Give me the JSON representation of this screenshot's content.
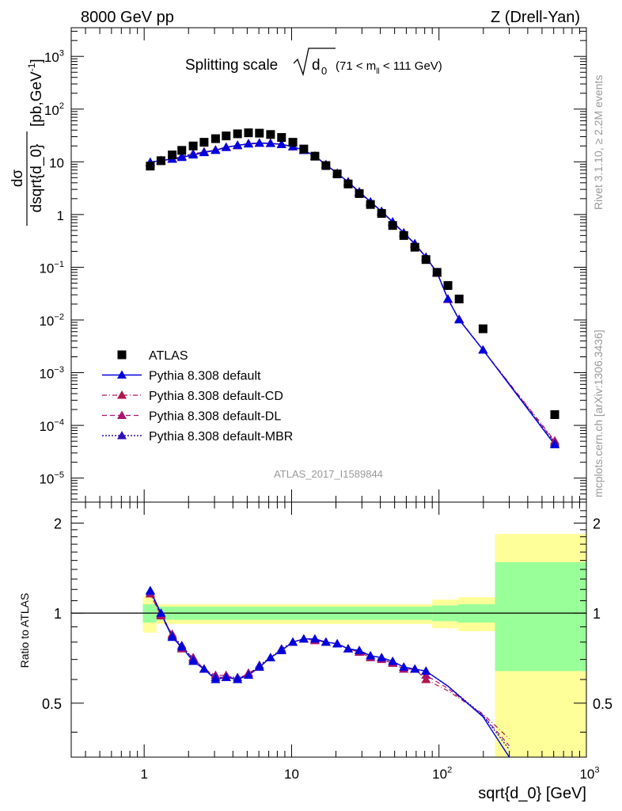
{
  "header": {
    "left": "8000 GeV pp",
    "right": "Z (Drell-Yan)"
  },
  "plot_title": {
    "main": "Splitting scale",
    "sqrt_symbol": "√",
    "d_symbol": "d",
    "d_subscript": "0",
    "cut_prefix": "(71 < m",
    "cut_subscript": "ll",
    "cut_suffix": " < 111 GeV)"
  },
  "side_labels": {
    "rivet": "Rivet 3.1.10, ≥ 2.2M events",
    "mcplots": "mcplots.cern.ch [arXiv:1306.3436]"
  },
  "analysis_id": "ATLAS_2017_I1589844",
  "ylabel_main": {
    "numerator": "dσ",
    "denominator": "dsqrt{d_0}",
    "units": "[pb,GeV",
    "units_exp": "-1",
    "units_close": "]"
  },
  "ylabel_ratio": "Ratio to ATLAS",
  "xlabel": "sqrt{d_0} [GeV]",
  "axis_ticks": {
    "x": [
      {
        "value": 1,
        "base": "1",
        "exp": ""
      },
      {
        "value": 10,
        "base": "10",
        "exp": ""
      },
      {
        "value": 100,
        "base": "10",
        "exp": "2"
      },
      {
        "value": 1000,
        "base": "10",
        "exp": "3"
      }
    ],
    "y_main": [
      {
        "value": 1e-05,
        "base": "10",
        "exp": "−5"
      },
      {
        "value": 0.0001,
        "base": "10",
        "exp": "−4"
      },
      {
        "value": 0.001,
        "base": "10",
        "exp": "−3"
      },
      {
        "value": 0.01,
        "base": "10",
        "exp": "−2"
      },
      {
        "value": 0.1,
        "base": "10",
        "exp": "−1"
      },
      {
        "value": 1,
        "base": "1",
        "exp": ""
      },
      {
        "value": 10,
        "base": "10",
        "exp": ""
      },
      {
        "value": 100,
        "base": "10",
        "exp": "2"
      },
      {
        "value": 1000,
        "base": "10",
        "exp": "3"
      }
    ],
    "y_ratio": [
      {
        "value": 0.5,
        "label": "0.5"
      },
      {
        "value": 1,
        "label": "1"
      },
      {
        "value": 2,
        "label": "2"
      }
    ]
  },
  "colors": {
    "data": "#000000",
    "default": "#0000dd",
    "cd": "#b0174a",
    "dl": "#a8146e",
    "mbr": "#2c12b8",
    "band_inner": "#99ff99",
    "band_outer": "#ffff99"
  },
  "legend": [
    {
      "label": "ATLAS",
      "series": "data"
    },
    {
      "label": "Pythia 8.308 default",
      "series": "default"
    },
    {
      "label": "Pythia 8.308 default-CD",
      "series": "cd"
    },
    {
      "label": "Pythia 8.308 default-DL",
      "series": "dl"
    },
    {
      "label": "Pythia 8.308 default-MBR",
      "series": "mbr"
    }
  ],
  "chart_data": {
    "type": "scatter",
    "x_scale": "log",
    "y_scale": "log",
    "xlim": [
      0.32,
      1000
    ],
    "ylim_main": [
      3.5e-06,
      3500
    ],
    "ylim_ratio": [
      0.33,
      2.35
    ],
    "x": [
      1.1,
      1.3,
      1.55,
      1.8,
      2.15,
      2.55,
      3.05,
      3.6,
      4.3,
      5.1,
      6.05,
      7.2,
      8.55,
      10.2,
      12.1,
      14.4,
      17.1,
      20.4,
      24.2,
      28.8,
      34.3,
      40.8,
      48.5,
      57.7,
      68.6,
      81.6,
      97,
      115,
      137,
      199,
      610
    ],
    "series": [
      {
        "name": "ATLAS",
        "key": "data",
        "values": [
          8.3,
          10.5,
          13.5,
          16.5,
          20,
          23.5,
          27.5,
          31,
          34,
          35.5,
          35,
          33,
          29,
          23.5,
          17.5,
          12.8,
          8.5,
          5.9,
          3.8,
          2.5,
          1.55,
          1.05,
          0.62,
          0.4,
          0.24,
          0.14,
          0.08,
          0.045,
          0.025,
          0.0068,
          0.00016
        ]
      },
      {
        "name": "Pythia 8.308 default",
        "key": "default",
        "values": [
          9.8,
          10.6,
          11.2,
          12.1,
          13.5,
          15,
          16.5,
          18.8,
          20.5,
          21.8,
          22.6,
          22.3,
          21.5,
          19.5,
          16.5,
          12.8,
          8.85,
          6.08,
          4.15,
          2.7,
          1.75,
          1.15,
          0.73,
          0.45,
          0.28,
          0.155,
          0.08,
          0.025,
          0.0101,
          0.0027,
          4.3e-05
        ]
      },
      {
        "name": "Pythia 8.308 default-CD",
        "key": "cd",
        "values": [
          9.6,
          10.5,
          11.5,
          12.5,
          14.2,
          15.5,
          16.8,
          18.9,
          20.3,
          22.2,
          22.6,
          22.7,
          21.4,
          19.2,
          16.7,
          12.9,
          8.8,
          6.1,
          4.1,
          2.6,
          1.72,
          1.15,
          0.7,
          0.45,
          0.27,
          0.155,
          0.077,
          0.0245,
          0.0104,
          0.0027,
          5.1e-05
        ]
      },
      {
        "name": "Pythia 8.308 default-DL",
        "key": "dl",
        "values": [
          9.7,
          10.4,
          11.4,
          12.6,
          14.3,
          15.3,
          16.9,
          19.1,
          20.4,
          22.3,
          22.7,
          22.5,
          21.6,
          19.3,
          16.5,
          12.7,
          8.9,
          6.0,
          4.2,
          2.6,
          1.7,
          1.15,
          0.71,
          0.45,
          0.27,
          0.156,
          0.079,
          0.0246,
          0.0102,
          0.0027,
          4.8e-05
        ]
      },
      {
        "name": "Pythia 8.308 default-MBR",
        "key": "mbr",
        "values": [
          9.9,
          10.7,
          11.2,
          12.7,
          14.1,
          15.4,
          16.7,
          18.8,
          20.8,
          22.0,
          22.9,
          22.4,
          21.4,
          19.4,
          16.5,
          12.9,
          8.85,
          6.05,
          4.15,
          2.67,
          1.73,
          1.15,
          0.72,
          0.45,
          0.28,
          0.154,
          0.08,
          0.025,
          0.0102,
          0.0027,
          4.5e-05
        ]
      }
    ],
    "ratio": {
      "x": [
        1.1,
        1.3,
        1.55,
        1.8,
        2.15,
        2.55,
        3.05,
        3.6,
        4.3,
        5.1,
        6.05,
        7.2,
        8.55,
        10.2,
        12.1,
        14.4,
        17.1,
        20.4,
        24.2,
        28.8,
        34.3,
        40.8,
        48.5,
        57.7,
        68.6,
        81.6
      ],
      "series": [
        {
          "key": "default",
          "values": [
            1.19,
            1.0,
            0.83,
            0.77,
            0.69,
            0.65,
            0.6,
            0.61,
            0.6,
            0.62,
            0.66,
            0.71,
            0.75,
            0.8,
            0.82,
            0.82,
            0.8,
            0.79,
            0.76,
            0.75,
            0.72,
            0.71,
            0.69,
            0.66,
            0.65,
            0.64
          ]
        },
        {
          "key": "cd",
          "values": [
            1.16,
            0.99,
            0.85,
            0.76,
            0.71,
            0.65,
            0.61,
            0.61,
            0.6,
            0.63,
            0.66,
            0.71,
            0.75,
            0.8,
            0.82,
            0.81,
            0.8,
            0.79,
            0.76,
            0.74,
            0.72,
            0.71,
            0.68,
            0.65,
            0.65,
            0.6
          ]
        },
        {
          "key": "dl",
          "values": [
            1.16,
            0.98,
            0.84,
            0.76,
            0.71,
            0.65,
            0.62,
            0.62,
            0.6,
            0.63,
            0.66,
            0.71,
            0.75,
            0.8,
            0.82,
            0.81,
            0.8,
            0.79,
            0.76,
            0.74,
            0.71,
            0.7,
            0.68,
            0.65,
            0.65,
            0.62
          ]
        },
        {
          "key": "mbr",
          "values": [
            1.18,
            1.0,
            0.84,
            0.78,
            0.7,
            0.65,
            0.61,
            0.61,
            0.61,
            0.62,
            0.67,
            0.71,
            0.76,
            0.8,
            0.82,
            0.82,
            0.8,
            0.79,
            0.76,
            0.75,
            0.72,
            0.71,
            0.69,
            0.66,
            0.65,
            0.64
          ]
        }
      ],
      "tail_x": [
        81.6,
        115,
        199,
        300
      ],
      "tail": {
        "default": [
          0.64,
          0.57,
          0.45,
          0.33
        ],
        "cd": [
          0.6,
          0.55,
          0.46,
          0.38
        ],
        "dl": [
          0.62,
          0.56,
          0.455,
          0.36
        ],
        "mbr": [
          0.64,
          0.57,
          0.455,
          0.35
        ]
      },
      "bands": [
        {
          "x_low": 0.98,
          "x_high": 1.21,
          "inner": [
            0.93,
            1.07
          ],
          "outer": [
            0.86,
            1.14
          ]
        },
        {
          "x_low": 1.21,
          "x_high": 90,
          "inner": [
            0.95,
            1.05
          ],
          "outer": [
            0.92,
            1.07
          ]
        },
        {
          "x_low": 90,
          "x_high": 135,
          "inner": [
            0.94,
            1.06
          ],
          "outer": [
            0.89,
            1.11
          ]
        },
        {
          "x_low": 135,
          "x_high": 240,
          "inner": [
            0.93,
            1.07
          ],
          "outer": [
            0.87,
            1.13
          ]
        },
        {
          "x_low": 240,
          "x_high": 1000,
          "inner": [
            0.64,
            1.48
          ],
          "outer": [
            0.3,
            1.84
          ]
        }
      ]
    }
  }
}
